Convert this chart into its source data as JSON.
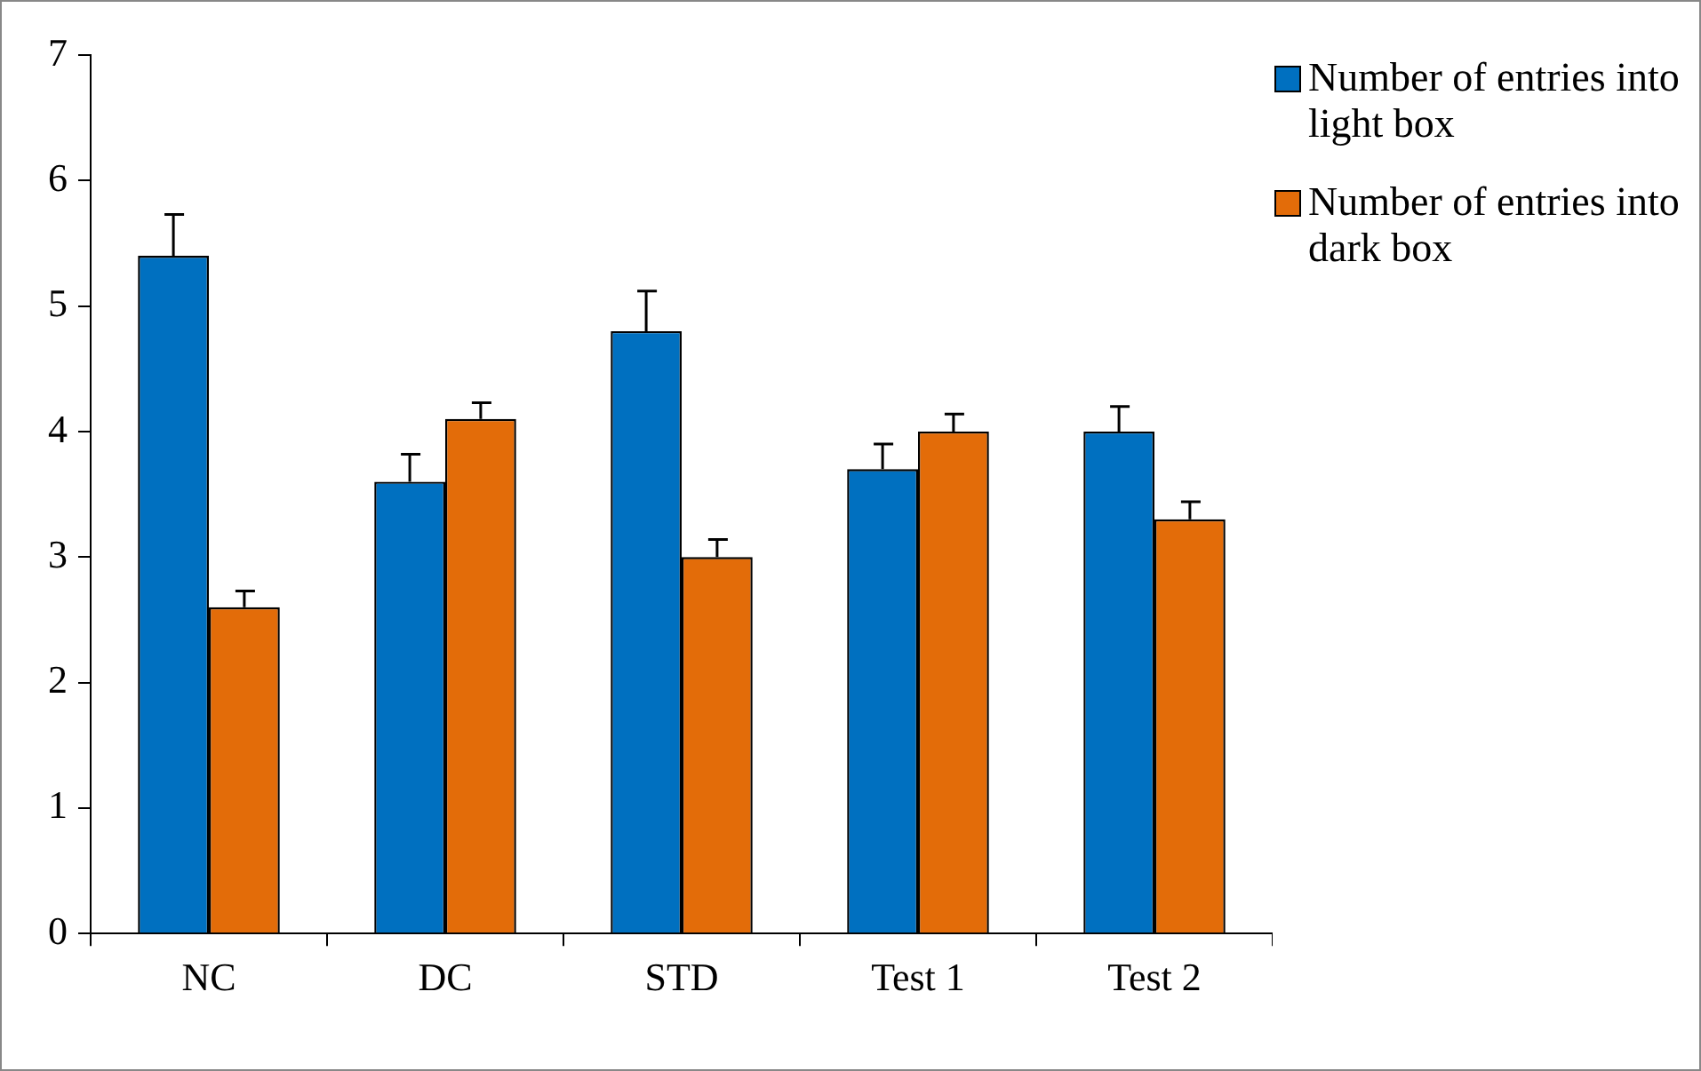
{
  "chart_data": {
    "type": "bar",
    "categories": [
      "NC",
      "DC",
      "STD",
      "Test 1",
      "Test 2"
    ],
    "series": [
      {
        "name": "Number of entries into light box",
        "color": "#0070c0",
        "values": [
          5.4,
          3.6,
          4.8,
          3.7,
          4.0
        ],
        "errors": [
          0.33,
          0.22,
          0.32,
          0.2,
          0.2
        ]
      },
      {
        "name": "Number of entries into dark box",
        "color": "#e36c09",
        "values": [
          2.6,
          4.1,
          3.0,
          4.0,
          3.3
        ],
        "errors": [
          0.13,
          0.13,
          0.14,
          0.14,
          0.14
        ]
      }
    ],
    "ylim": [
      0,
      7
    ],
    "yticks": [
      0,
      1,
      2,
      3,
      4,
      5,
      6,
      7
    ],
    "grid": false,
    "legend": "right"
  }
}
